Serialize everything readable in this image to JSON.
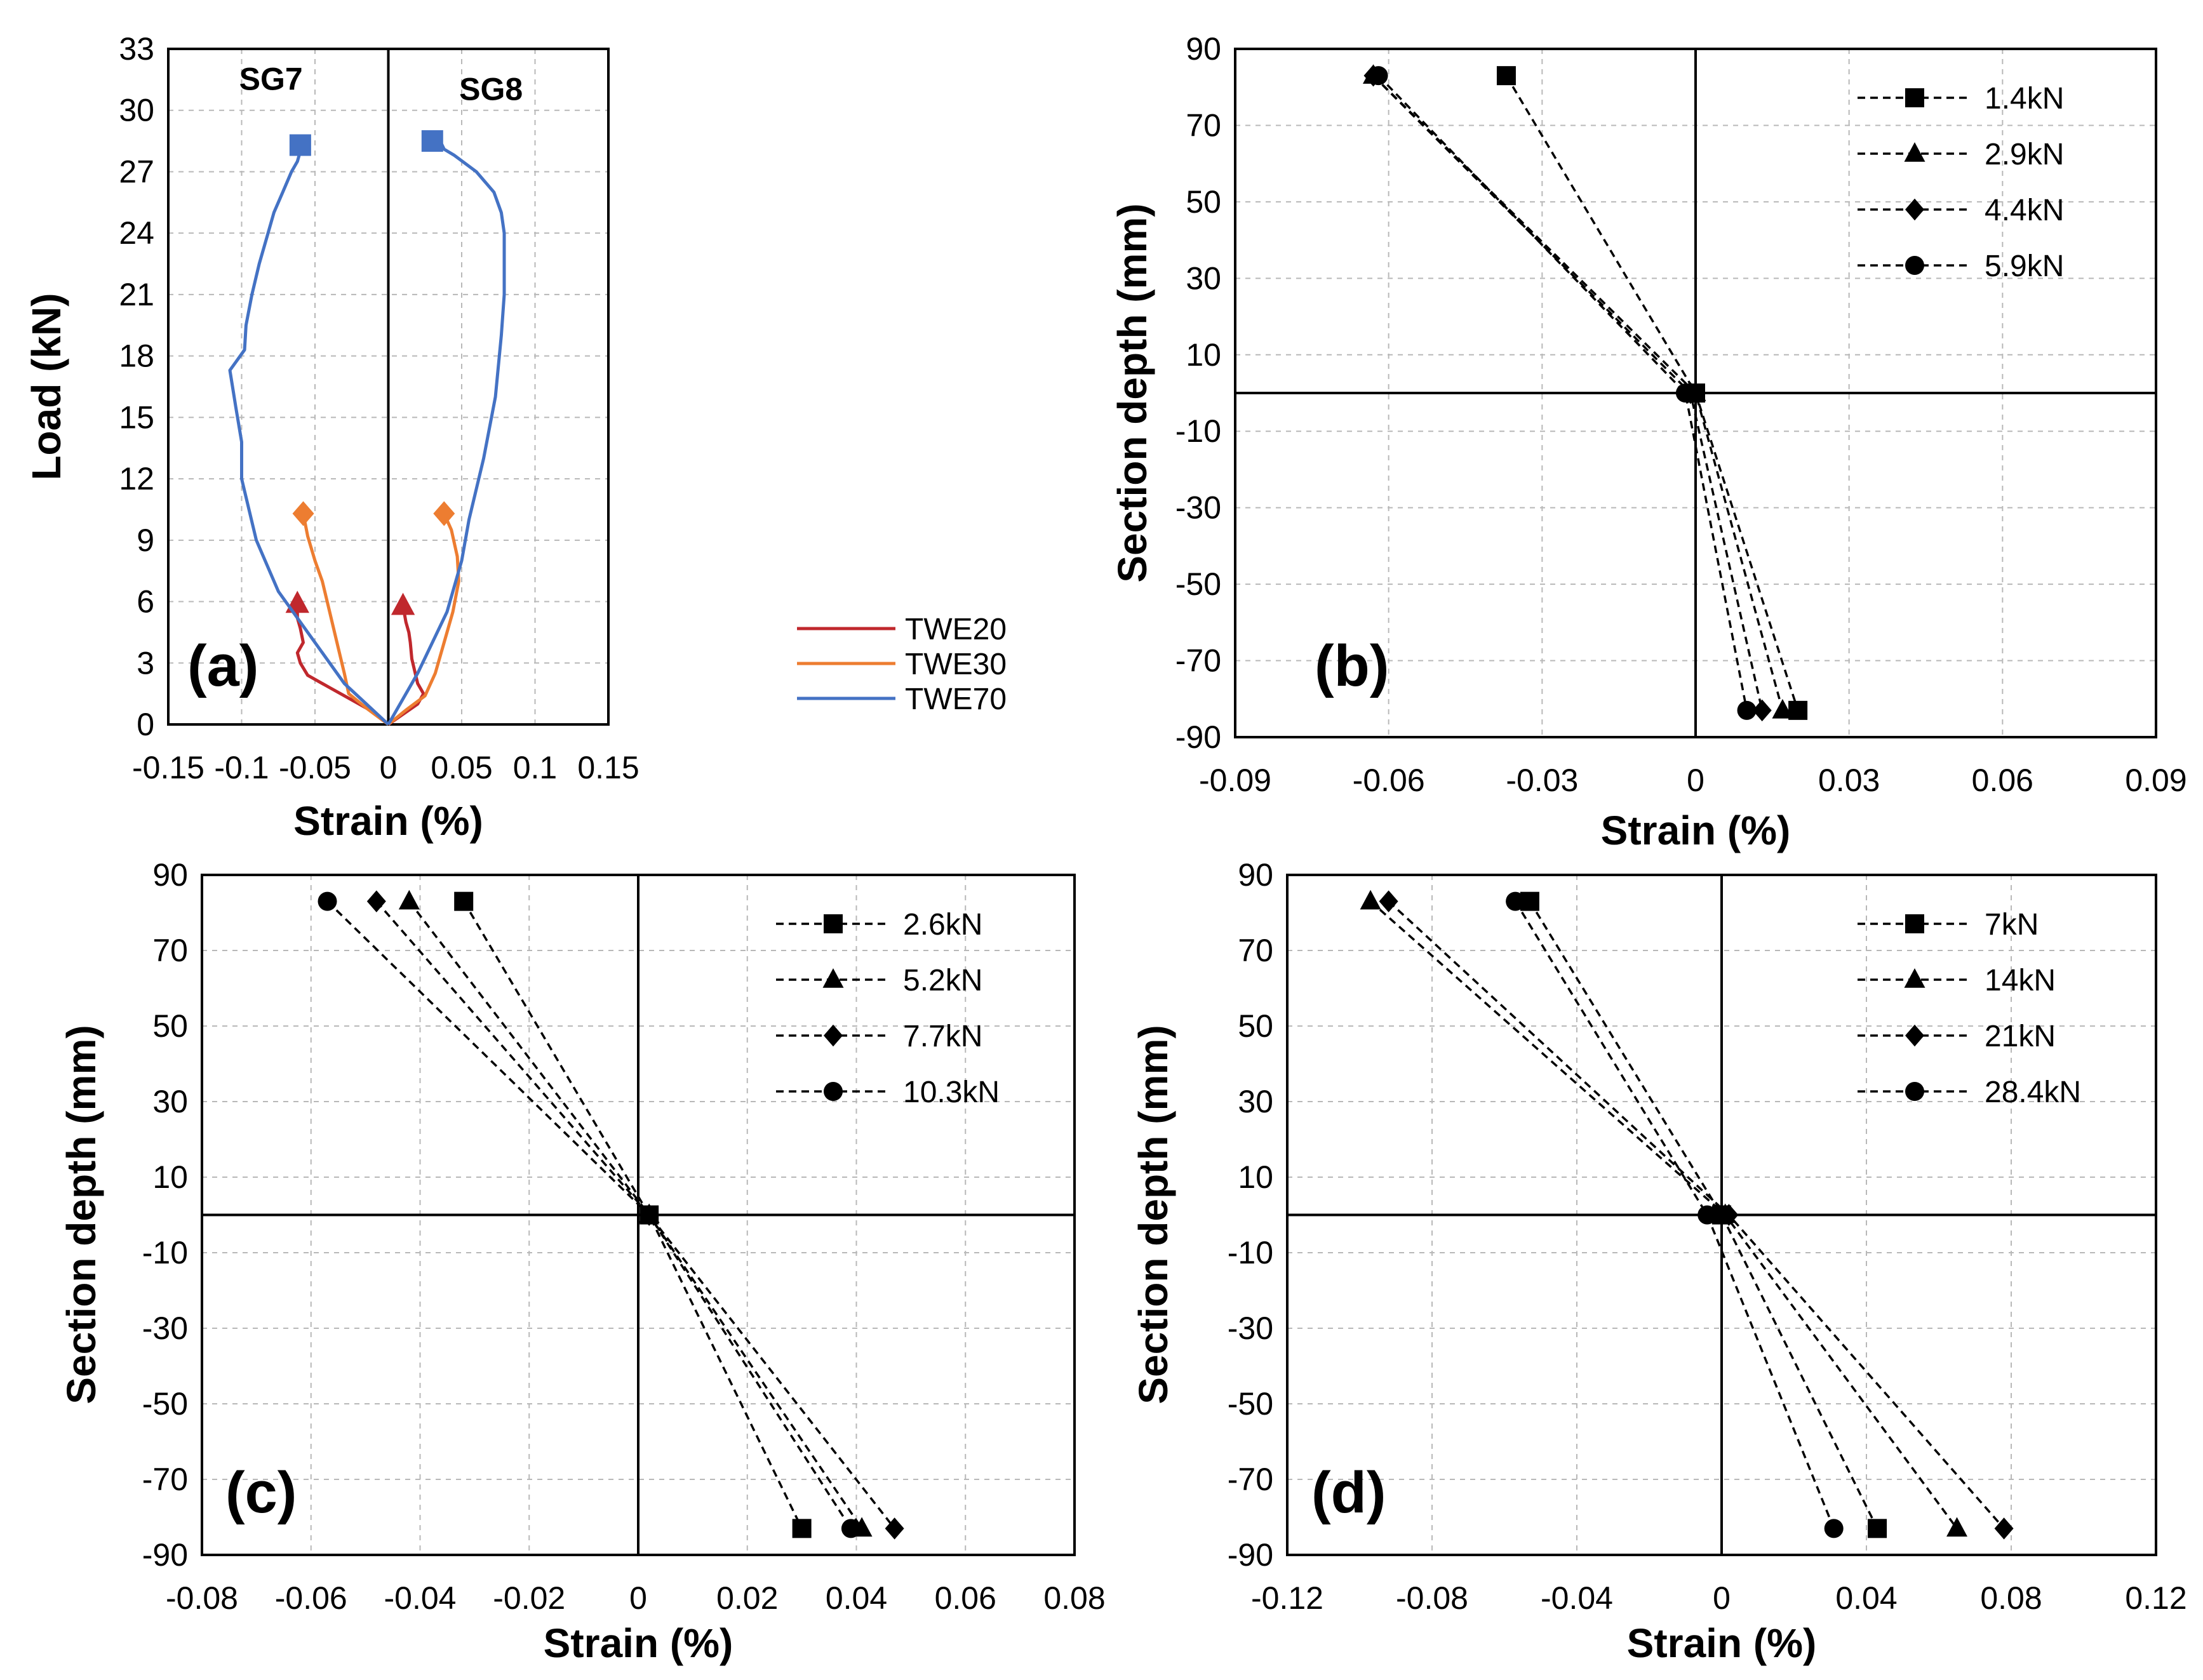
{
  "figure": {
    "panels": [
      "(a)",
      "(b)",
      "(c)",
      "(d)"
    ]
  },
  "chart_data": [
    {
      "id": "a",
      "type": "line",
      "panel_label": "(a)",
      "xlabel": "Strain (%)",
      "ylabel": "Load (kN)",
      "xlim": [
        -0.15,
        0.15
      ],
      "ylim": [
        0,
        33
      ],
      "xticks": [
        -0.15,
        -0.1,
        -0.05,
        0,
        0.05,
        0.1,
        0.15
      ],
      "xtick_labels": [
        "-0.15",
        "-0.1",
        "-0.05",
        "0",
        "0.05",
        "0.1",
        "0.15"
      ],
      "yticks": [
        0,
        3,
        6,
        9,
        12,
        15,
        18,
        21,
        24,
        27,
        30,
        33
      ],
      "ytick_labels": [
        "0",
        "3",
        "6",
        "9",
        "12",
        "15",
        "18",
        "21",
        "24",
        "27",
        "30",
        "33"
      ],
      "annotations": [
        "SG7",
        "SG8"
      ],
      "legend": [
        "TWE20",
        "TWE30",
        "TWE70"
      ],
      "series": [
        {
          "name": "TWE20",
          "color": "#c0282d",
          "marker": "triangle",
          "curves": [
            {
              "x": [
                0,
                -0.01,
                -0.025,
                -0.04,
                -0.055,
                -0.06,
                -0.062,
                -0.058,
                -0.06,
                -0.062,
                -0.062
              ],
              "y": [
                0,
                0.6,
                1.2,
                1.8,
                2.4,
                3.0,
                3.5,
                4.0,
                4.7,
                5.2,
                5.9
              ]
            },
            {
              "x": [
                0,
                0.01,
                0.02,
                0.024,
                0.02,
                0.018,
                0.016,
                0.015,
                0.014,
                0.012,
                0.01
              ],
              "y": [
                0,
                0.5,
                1.0,
                1.5,
                2.0,
                2.6,
                3.2,
                4.0,
                4.5,
                5.0,
                5.8
              ]
            }
          ]
        },
        {
          "name": "TWE30",
          "color": "#ed7d31",
          "marker": "diamond",
          "curves": [
            {
              "x": [
                0,
                -0.015,
                -0.027,
                -0.03,
                -0.035,
                -0.04,
                -0.045,
                -0.05,
                -0.055,
                -0.058
              ],
              "y": [
                0,
                0.8,
                1.5,
                2.5,
                4.0,
                5.5,
                7.0,
                8.0,
                9.2,
                10.3
              ]
            },
            {
              "x": [
                0,
                0.012,
                0.025,
                0.032,
                0.038,
                0.044,
                0.048,
                0.047,
                0.043,
                0.038
              ],
              "y": [
                0,
                0.7,
                1.4,
                2.5,
                4.0,
                5.5,
                7.0,
                8.2,
                9.5,
                10.3
              ]
            }
          ]
        },
        {
          "name": "TWE70",
          "color": "#4472c4",
          "marker": "square",
          "curves": [
            {
              "x": [
                0,
                -0.03,
                -0.055,
                -0.075,
                -0.09,
                -0.1,
                -0.1,
                -0.104,
                -0.108,
                -0.104,
                -0.098,
                -0.097,
                -0.093,
                -0.088,
                -0.082,
                -0.078,
                -0.072,
                -0.066,
                -0.062,
                -0.06,
                -0.06
              ],
              "y": [
                0,
                2.0,
                4.5,
                6.5,
                9.0,
                12.0,
                13.8,
                15.5,
                17.3,
                17.7,
                18.3,
                19.5,
                21.0,
                22.5,
                24.0,
                25.0,
                26.0,
                27.0,
                27.5,
                28.0,
                28.3
              ]
            },
            {
              "x": [
                0,
                0.02,
                0.04,
                0.05,
                0.055,
                0.065,
                0.073,
                0.077,
                0.079,
                0.079,
                0.077,
                0.072,
                0.06,
                0.045,
                0.038,
                0.036,
                0.033,
                0.03
              ],
              "y": [
                0,
                2.5,
                5.5,
                8.0,
                10.0,
                13.0,
                16.0,
                19.0,
                21.0,
                24.0,
                25.0,
                26.0,
                27.0,
                27.8,
                28.1,
                28.4,
                28.5,
                28.5
              ]
            }
          ]
        }
      ]
    },
    {
      "id": "b",
      "type": "line",
      "panel_label": "(b)",
      "xlabel": "Strain (%)",
      "ylabel": "Section depth (mm)",
      "xlim": [
        -0.09,
        0.09
      ],
      "ylim": [
        -90,
        90
      ],
      "xticks": [
        -0.09,
        -0.06,
        -0.03,
        0,
        0.03,
        0.06,
        0.09
      ],
      "xtick_labels": [
        "-0.09",
        "-0.06",
        "-0.03",
        "0",
        "0.03",
        "0.06",
        "0.09"
      ],
      "yticks": [
        90,
        70,
        50,
        30,
        10,
        -10,
        -30,
        -50,
        -70,
        -90
      ],
      "ytick_labels": [
        "90",
        "70",
        "50",
        "30",
        "10",
        "-10",
        "-30",
        "-50",
        "-70",
        "-90"
      ],
      "legend": [
        "1.4kN",
        "2.9kN",
        "4.4kN",
        "5.9kN"
      ],
      "series": [
        {
          "name": "1.4kN",
          "marker": "square",
          "x": [
            -0.037,
            0.0,
            0.02
          ],
          "y": [
            83,
            0,
            -83
          ]
        },
        {
          "name": "2.9kN",
          "marker": "triangle",
          "x": [
            -0.063,
            0.0,
            0.017
          ],
          "y": [
            83,
            0,
            -83
          ]
        },
        {
          "name": "4.4kN",
          "marker": "diamond",
          "x": [
            -0.063,
            -0.001,
            0.013
          ],
          "y": [
            83,
            0,
            -83
          ]
        },
        {
          "name": "5.9kN",
          "marker": "circle",
          "x": [
            -0.062,
            -0.002,
            0.01
          ],
          "y": [
            83,
            0,
            -83
          ]
        }
      ]
    },
    {
      "id": "c",
      "type": "line",
      "panel_label": "(c)",
      "xlabel": "Strain (%)",
      "ylabel": "Section depth (mm)",
      "xlim": [
        -0.08,
        0.08
      ],
      "ylim": [
        -90,
        90
      ],
      "xticks": [
        -0.08,
        -0.06,
        -0.04,
        -0.02,
        0,
        0.02,
        0.04,
        0.06,
        0.08
      ],
      "xtick_labels": [
        "-0.08",
        "-0.06",
        "-0.04",
        "-0.02",
        "0",
        "0.02",
        "0.04",
        "0.06",
        "0.08"
      ],
      "yticks": [
        90,
        70,
        50,
        30,
        10,
        -10,
        -30,
        -50,
        -70,
        -90
      ],
      "ytick_labels": [
        "90",
        "70",
        "50",
        "30",
        "10",
        "-10",
        "-30",
        "-50",
        "-70",
        "-90"
      ],
      "legend": [
        "2.6kN",
        "5.2kN",
        "7.7kN",
        "10.3kN"
      ],
      "series": [
        {
          "name": "2.6kN",
          "marker": "square",
          "x": [
            -0.032,
            0.002,
            0.03
          ],
          "y": [
            83,
            0,
            -83
          ]
        },
        {
          "name": "5.2kN",
          "marker": "triangle",
          "x": [
            -0.042,
            0.002,
            0.041
          ],
          "y": [
            83,
            0,
            -83
          ]
        },
        {
          "name": "7.7kN",
          "marker": "diamond",
          "x": [
            -0.048,
            0.002,
            0.047
          ],
          "y": [
            83,
            0,
            -83
          ]
        },
        {
          "name": "10.3kN",
          "marker": "circle",
          "x": [
            -0.057,
            0.002,
            0.039
          ],
          "y": [
            83,
            0,
            -83
          ]
        }
      ]
    },
    {
      "id": "d",
      "type": "line",
      "panel_label": "(d)",
      "xlabel": "Strain (%)",
      "ylabel": "Section depth (mm)",
      "xlim": [
        -0.12,
        0.12
      ],
      "ylim": [
        -90,
        90
      ],
      "xticks": [
        -0.12,
        -0.08,
        -0.04,
        0,
        0.04,
        0.08,
        0.12
      ],
      "xtick_labels": [
        "-0.12",
        "-0.08",
        "-0.04",
        "0",
        "0.04",
        "0.08",
        "0.12"
      ],
      "yticks": [
        90,
        70,
        50,
        30,
        10,
        -10,
        -30,
        -50,
        -70,
        -90
      ],
      "ytick_labels": [
        "90",
        "70",
        "50",
        "30",
        "10",
        "-10",
        "-30",
        "-50",
        "-70",
        "-90"
      ],
      "legend": [
        "7kN",
        "14kN",
        "21kN",
        "28.4kN"
      ],
      "series": [
        {
          "name": "7kN",
          "marker": "square",
          "x": [
            -0.053,
            0.0,
            0.043
          ],
          "y": [
            83,
            0,
            -83
          ]
        },
        {
          "name": "14kN",
          "marker": "triangle",
          "x": [
            -0.097,
            0.001,
            0.065
          ],
          "y": [
            83,
            0,
            -83
          ]
        },
        {
          "name": "21kN",
          "marker": "diamond",
          "x": [
            -0.092,
            0.002,
            0.078
          ],
          "y": [
            83,
            0,
            -83
          ]
        },
        {
          "name": "28.4kN",
          "marker": "circle",
          "x": [
            -0.057,
            -0.004,
            0.031
          ],
          "y": [
            83,
            0,
            -83
          ]
        }
      ]
    }
  ]
}
